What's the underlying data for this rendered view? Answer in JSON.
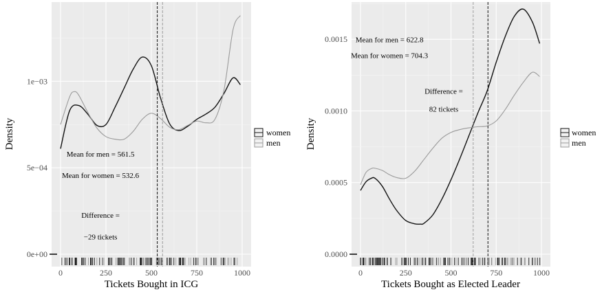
{
  "chart_data": [
    {
      "type": "area",
      "xlabel": "Tickets Bought in ICG",
      "ylabel": "Density",
      "xlim": [
        0,
        1000
      ],
      "ylim": [
        0,
        0.00145
      ],
      "xticks": [
        0,
        250,
        500,
        750,
        1000
      ],
      "xtick_labels": [
        "0",
        "250",
        "500",
        "750",
        "1000"
      ],
      "yticks": [
        0,
        0.0005,
        0.001
      ],
      "ytick_labels": [
        "0e+00",
        "5e−04",
        "1e−03"
      ],
      "grid": true,
      "legend_position": "right",
      "legend": [
        {
          "label": "women",
          "color": "#111111"
        },
        {
          "label": "men",
          "color": "#9a9a9a"
        }
      ],
      "series": [
        {
          "name": "women",
          "color": "#111111",
          "x": [
            0,
            50,
            100,
            150,
            200,
            250,
            300,
            350,
            400,
            450,
            500,
            550,
            600,
            650,
            700,
            750,
            800,
            850,
            900,
            950,
            990
          ],
          "y": [
            0.00061,
            0.00083,
            0.00086,
            0.00081,
            0.000745,
            0.00075,
            0.00085,
            0.00096,
            0.00107,
            0.00114,
            0.00109,
            0.000905,
            0.000755,
            0.000715,
            0.00074,
            0.00078,
            0.00081,
            0.00085,
            0.00093,
            0.00102,
            0.00098
          ]
        },
        {
          "name": "men",
          "color": "#9a9a9a",
          "x": [
            0,
            50,
            75,
            100,
            150,
            200,
            250,
            300,
            350,
            400,
            450,
            500,
            550,
            600,
            650,
            700,
            750,
            800,
            850,
            900,
            950,
            990
          ],
          "y": [
            0.00075,
            0.00091,
            0.00094,
            0.00092,
            0.00082,
            0.00073,
            0.00068,
            0.000665,
            0.000665,
            0.00071,
            0.00078,
            0.000815,
            0.000785,
            0.000735,
            0.00072,
            0.000745,
            0.00077,
            0.00076,
            0.00078,
            0.00095,
            0.0013,
            0.00138
          ]
        }
      ],
      "vlines": [
        {
          "x": 532.6,
          "color": "#111111"
        },
        {
          "x": 561.5,
          "color": "#9a9a9a"
        }
      ],
      "annotations": [
        {
          "text": "Mean for men = 561.5",
          "x": 220,
          "y": 0.000565
        },
        {
          "text": "Mean for women = 532.6",
          "x": 220,
          "y": 0.00044
        },
        {
          "text": "Difference =",
          "x": 220,
          "y": 0.00021
        },
        {
          "text": "−29 tickets",
          "x": 220,
          "y": 8.5e-05
        }
      ]
    },
    {
      "type": "area",
      "xlabel": "Tickets Bought as Elected Leader",
      "ylabel": "Density",
      "xlim": [
        0,
        1000
      ],
      "ylim": [
        0,
        0.00175
      ],
      "xticks": [
        0,
        250,
        500,
        750,
        1000
      ],
      "xtick_labels": [
        "0",
        "250",
        "500",
        "750",
        "1000"
      ],
      "yticks": [
        0,
        0.0005,
        0.001,
        0.0015
      ],
      "ytick_labels": [
        "0.0000",
        "0.0005",
        "0.0010",
        "0.0015"
      ],
      "grid": true,
      "legend_position": "right",
      "legend": [
        {
          "label": "women",
          "color": "#111111"
        },
        {
          "label": "men",
          "color": "#9a9a9a"
        }
      ],
      "series": [
        {
          "name": "women",
          "color": "#111111",
          "x": [
            0,
            30,
            60,
            80,
            120,
            160,
            200,
            250,
            300,
            330,
            350,
            400,
            450,
            500,
            550,
            600,
            650,
            700,
            750,
            800,
            850,
            900,
            950,
            990
          ],
          "y": [
            0.000445,
            0.000505,
            0.00053,
            0.00053,
            0.000475,
            0.000385,
            0.000305,
            0.000235,
            0.000212,
            0.00021,
            0.000215,
            0.000275,
            0.000385,
            0.00052,
            0.00067,
            0.00083,
            0.00099,
            0.00114,
            0.00134,
            0.00152,
            0.00166,
            0.00171,
            0.00162,
            0.00147
          ]
        },
        {
          "name": "men",
          "color": "#9a9a9a",
          "x": [
            0,
            30,
            60,
            80,
            120,
            160,
            200,
            250,
            300,
            350,
            400,
            450,
            500,
            550,
            600,
            650,
            700,
            750,
            800,
            850,
            900,
            950,
            990
          ],
          "y": [
            0.000485,
            0.00057,
            0.000598,
            0.0006,
            0.000585,
            0.000555,
            0.000535,
            0.00053,
            0.00058,
            0.00066,
            0.00074,
            0.00081,
            0.00085,
            0.00087,
            0.000882,
            0.00089,
            0.000895,
            0.00093,
            0.00101,
            0.00111,
            0.0012,
            0.00127,
            0.00124
          ]
        }
      ],
      "vlines": [
        {
          "x": 622.8,
          "color": "#9a9a9a"
        },
        {
          "x": 704.3,
          "color": "#111111"
        }
      ],
      "annotations": [
        {
          "text": "Mean for men = 622.8",
          "x": 160,
          "y": 0.00148
        },
        {
          "text": "Mean for women = 704.3",
          "x": 160,
          "y": 0.00137
        },
        {
          "text": "Difference =",
          "x": 460,
          "y": 0.00112
        },
        {
          "text": "82 tickets",
          "x": 460,
          "y": 0.000995
        }
      ]
    }
  ]
}
